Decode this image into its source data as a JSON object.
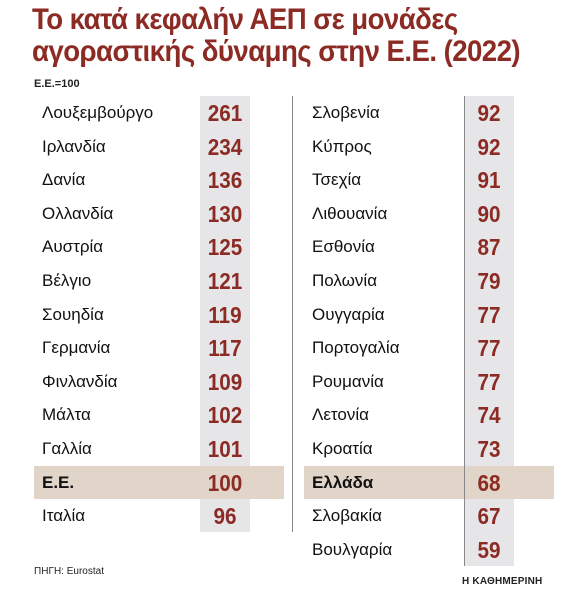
{
  "chart_data": {
    "type": "table",
    "title": "Το κατά κεφαλήν ΑΕΠ σε μονάδες αγοραστικής δύναμης στην Ε.Ε. (2022)",
    "unit_label": "Ε.Ε.=100",
    "highlight_color": "#e1d4c8",
    "value_color": "#8c2a24",
    "left": [
      {
        "country": "Λουξεμβούργο",
        "value": "261"
      },
      {
        "country": "Ιρλανδία",
        "value": "234"
      },
      {
        "country": "Δανία",
        "value": "136"
      },
      {
        "country": "Ολλανδία",
        "value": "130"
      },
      {
        "country": "Αυστρία",
        "value": "125"
      },
      {
        "country": "Βέλγιο",
        "value": "121"
      },
      {
        "country": "Σουηδία",
        "value": "119"
      },
      {
        "country": "Γερμανία",
        "value": "117"
      },
      {
        "country": "Φινλανδία",
        "value": "109"
      },
      {
        "country": "Μάλτα",
        "value": "102"
      },
      {
        "country": "Γαλλία",
        "value": "101"
      },
      {
        "country": "Ε.Ε.",
        "value": "100",
        "highlight": true
      },
      {
        "country": "Ιταλία",
        "value": "96"
      }
    ],
    "right": [
      {
        "country": "Σλοβενία",
        "value": "92"
      },
      {
        "country": "Κύπρος",
        "value": "92"
      },
      {
        "country": "Τσεχία",
        "value": "91"
      },
      {
        "country": "Λιθουανία",
        "value": "90"
      },
      {
        "country": "Εσθονία",
        "value": "87"
      },
      {
        "country": "Πολωνία",
        "value": "79"
      },
      {
        "country": "Ουγγαρία",
        "value": "77"
      },
      {
        "country": "Πορτογαλία",
        "value": "77"
      },
      {
        "country": "Ρουμανία",
        "value": "77"
      },
      {
        "country": "Λετονία",
        "value": "74"
      },
      {
        "country": "Κροατία",
        "value": "73"
      },
      {
        "country": "Ελλάδα",
        "value": "68",
        "highlight": true
      },
      {
        "country": "Σλοβακία",
        "value": "67"
      },
      {
        "country": "Βουλγαρία",
        "value": "59"
      }
    ]
  },
  "source": "ΠΗΓΗ: Eurostat",
  "brand": "Η ΚΑΘΗΜΕΡΙΝΗ"
}
